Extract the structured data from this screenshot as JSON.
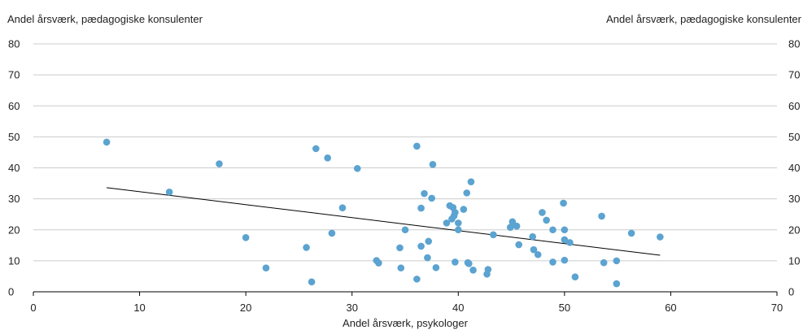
{
  "chart_data": {
    "type": "scatter",
    "title_left": "Andel årsværk, pædagogiske konsulenter",
    "title_right": "Andel årsværk, pædagogiske konsulenter",
    "xlabel": "Andel årsværk, psykologer",
    "xlim": [
      0,
      70
    ],
    "ylim": [
      0,
      80
    ],
    "x_ticks": [
      "0",
      "10",
      "20",
      "30",
      "40",
      "50",
      "60",
      "70"
    ],
    "y_ticks": [
      "0",
      "10",
      "20",
      "30",
      "40",
      "50",
      "60",
      "70",
      "80"
    ],
    "grid": true,
    "point_color": "#5BA3D0",
    "trend_color": "#000000",
    "trendline": {
      "x": [
        6.9,
        59.0
      ],
      "y": [
        33.6,
        11.8
      ]
    },
    "points": [
      {
        "x": 6.9,
        "y": 48.3
      },
      {
        "x": 12.8,
        "y": 32.2
      },
      {
        "x": 17.5,
        "y": 41.3
      },
      {
        "x": 20.0,
        "y": 17.5
      },
      {
        "x": 21.9,
        "y": 7.7
      },
      {
        "x": 25.7,
        "y": 14.3
      },
      {
        "x": 26.2,
        "y": 3.2
      },
      {
        "x": 26.6,
        "y": 46.2
      },
      {
        "x": 27.7,
        "y": 43.2
      },
      {
        "x": 28.1,
        "y": 18.9
      },
      {
        "x": 29.1,
        "y": 27.1
      },
      {
        "x": 30.5,
        "y": 39.8
      },
      {
        "x": 32.3,
        "y": 10.1
      },
      {
        "x": 32.5,
        "y": 9.3
      },
      {
        "x": 34.5,
        "y": 14.2
      },
      {
        "x": 34.6,
        "y": 7.7
      },
      {
        "x": 35.0,
        "y": 20.0
      },
      {
        "x": 36.1,
        "y": 47.0
      },
      {
        "x": 36.1,
        "y": 4.1
      },
      {
        "x": 36.5,
        "y": 27.0
      },
      {
        "x": 36.5,
        "y": 14.7
      },
      {
        "x": 36.8,
        "y": 31.7
      },
      {
        "x": 37.1,
        "y": 11.0
      },
      {
        "x": 37.2,
        "y": 16.3
      },
      {
        "x": 37.5,
        "y": 30.2
      },
      {
        "x": 37.6,
        "y": 41.1
      },
      {
        "x": 37.9,
        "y": 7.8
      },
      {
        "x": 38.9,
        "y": 22.2
      },
      {
        "x": 39.2,
        "y": 27.8
      },
      {
        "x": 39.4,
        "y": 23.5
      },
      {
        "x": 39.5,
        "y": 27.2
      },
      {
        "x": 39.6,
        "y": 24.5
      },
      {
        "x": 39.7,
        "y": 9.6
      },
      {
        "x": 39.7,
        "y": 25.6
      },
      {
        "x": 40.0,
        "y": 20.0
      },
      {
        "x": 40.0,
        "y": 22.2
      },
      {
        "x": 40.5,
        "y": 26.6
      },
      {
        "x": 40.8,
        "y": 31.9
      },
      {
        "x": 40.9,
        "y": 9.4
      },
      {
        "x": 41.0,
        "y": 9.1
      },
      {
        "x": 41.2,
        "y": 35.5
      },
      {
        "x": 41.4,
        "y": 7.0
      },
      {
        "x": 42.7,
        "y": 5.7
      },
      {
        "x": 42.8,
        "y": 7.2
      },
      {
        "x": 43.3,
        "y": 18.4
      },
      {
        "x": 44.9,
        "y": 20.8
      },
      {
        "x": 45.1,
        "y": 22.6
      },
      {
        "x": 45.5,
        "y": 21.2
      },
      {
        "x": 45.7,
        "y": 15.2
      },
      {
        "x": 47.0,
        "y": 17.8
      },
      {
        "x": 47.1,
        "y": 13.6
      },
      {
        "x": 47.5,
        "y": 12.0
      },
      {
        "x": 47.9,
        "y": 25.6
      },
      {
        "x": 48.3,
        "y": 23.1
      },
      {
        "x": 48.9,
        "y": 9.6
      },
      {
        "x": 48.9,
        "y": 20.0
      },
      {
        "x": 49.9,
        "y": 28.6
      },
      {
        "x": 50.0,
        "y": 20.0
      },
      {
        "x": 50.0,
        "y": 16.8
      },
      {
        "x": 50.0,
        "y": 10.2
      },
      {
        "x": 50.5,
        "y": 15.9
      },
      {
        "x": 51.0,
        "y": 4.8
      },
      {
        "x": 53.5,
        "y": 24.4
      },
      {
        "x": 53.7,
        "y": 9.4
      },
      {
        "x": 54.9,
        "y": 10.0
      },
      {
        "x": 54.9,
        "y": 2.6
      },
      {
        "x": 56.3,
        "y": 18.9
      },
      {
        "x": 59.0,
        "y": 17.7
      }
    ]
  }
}
